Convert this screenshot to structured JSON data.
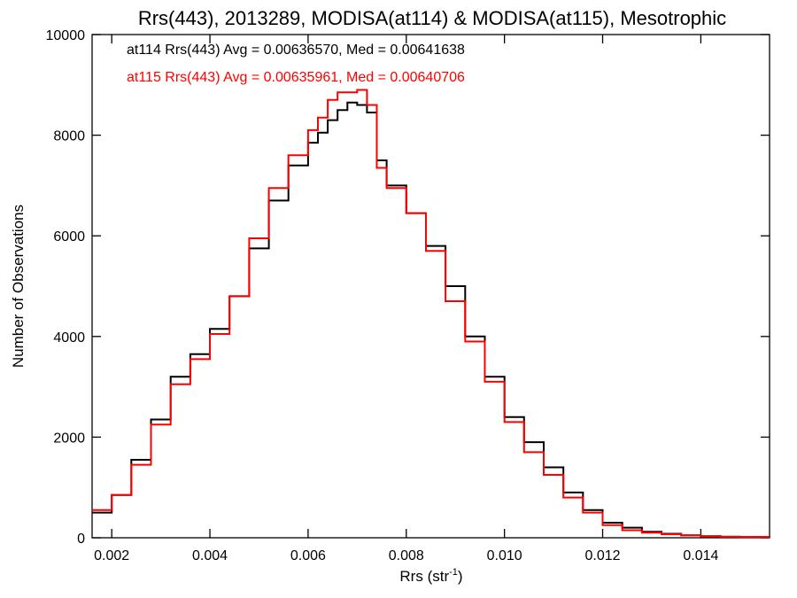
{
  "chart_data": {
    "type": "line",
    "title": "Rrs(443), 2013289, MODISA(at114) & MODISA(at115), Mesotrophic",
    "xlabel": "Rrs (str",
    "xlabel_sup": "-1",
    "xlabel_end": ")",
    "ylabel": "Number of Observations",
    "xlim": [
      0.0016,
      0.0154
    ],
    "ylim": [
      0,
      10000
    ],
    "xticks": [
      0.002,
      0.004,
      0.006,
      0.008,
      0.01,
      0.012,
      0.014
    ],
    "xtick_labels": [
      "0.002",
      "0.004",
      "0.006",
      "0.008",
      "0.010",
      "0.012",
      "0.014"
    ],
    "yticks": [
      0,
      2000,
      4000,
      6000,
      8000,
      10000
    ],
    "ytick_labels": [
      "0",
      "2000",
      "4000",
      "6000",
      "8000",
      "10000"
    ],
    "grid": false,
    "legend_position": "top-left",
    "series": [
      {
        "name": "at114",
        "legend_text": "at114 Rrs(443) Avg = 0.00636570, Med = 0.00641638",
        "color": "#000000",
        "x": [
          0.0016,
          0.002,
          0.0024,
          0.0028,
          0.0032,
          0.0036,
          0.004,
          0.0044,
          0.0048,
          0.0052,
          0.0056,
          0.006,
          0.0062,
          0.0064,
          0.0066,
          0.0068,
          0.007,
          0.0072,
          0.0074,
          0.0076,
          0.008,
          0.0084,
          0.0088,
          0.0092,
          0.0096,
          0.01,
          0.0104,
          0.0108,
          0.0112,
          0.0116,
          0.012,
          0.0124,
          0.0128,
          0.0132,
          0.0136,
          0.014,
          0.0144,
          0.0148,
          0.0154
        ],
        "y": [
          500,
          850,
          1550,
          2350,
          3200,
          3650,
          4150,
          4800,
          5750,
          6700,
          7400,
          7850,
          8050,
          8300,
          8500,
          8650,
          8600,
          8450,
          7500,
          7000,
          6450,
          5800,
          5000,
          4000,
          3200,
          2400,
          1900,
          1400,
          900,
          550,
          300,
          200,
          120,
          80,
          50,
          30,
          20,
          15,
          10
        ]
      },
      {
        "name": "at115",
        "legend_text": "at115 Rrs(443) Avg = 0.00635961, Med = 0.00640706",
        "color": "#ff0000",
        "x": [
          0.0016,
          0.002,
          0.0024,
          0.0028,
          0.0032,
          0.0036,
          0.004,
          0.0044,
          0.0048,
          0.0052,
          0.0056,
          0.006,
          0.0062,
          0.0064,
          0.0066,
          0.0068,
          0.007,
          0.0072,
          0.0074,
          0.0076,
          0.008,
          0.0084,
          0.0088,
          0.0092,
          0.0096,
          0.01,
          0.0104,
          0.0108,
          0.0112,
          0.0116,
          0.012,
          0.0124,
          0.0128,
          0.0132,
          0.0136,
          0.014,
          0.0144,
          0.0148,
          0.0154
        ],
        "y": [
          550,
          850,
          1450,
          2250,
          3050,
          3550,
          4050,
          4800,
          5950,
          6950,
          7600,
          8100,
          8350,
          8700,
          8850,
          8850,
          8900,
          8600,
          7350,
          6950,
          6450,
          5700,
          4700,
          3900,
          3100,
          2300,
          1700,
          1250,
          800,
          500,
          250,
          150,
          100,
          70,
          50,
          30,
          20,
          15,
          10
        ]
      }
    ]
  }
}
